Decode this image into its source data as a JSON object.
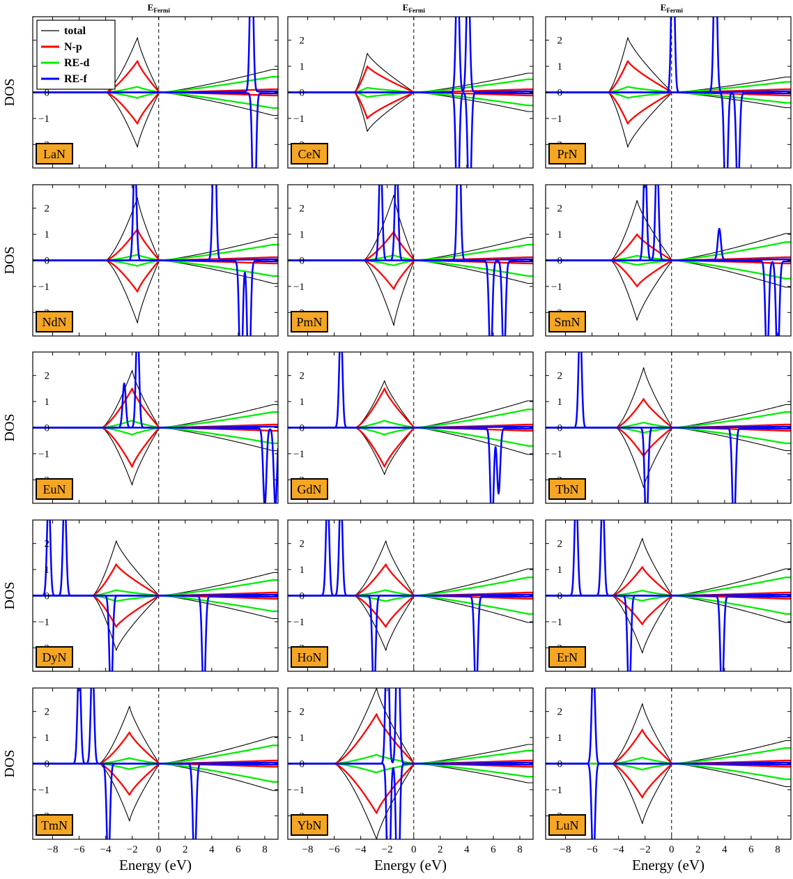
{
  "figure": {
    "fermi_label_main": "E",
    "fermi_label_sub": "Fermi",
    "y_axis_label": "DOS",
    "x_axis_label": "Energy (eV)",
    "x_ticks": [
      -8,
      -6,
      -4,
      -2,
      0,
      2,
      4,
      6,
      8
    ],
    "y_ticks": [
      -2,
      -1,
      0,
      1,
      2
    ],
    "x_range": [
      -9.5,
      9.0
    ],
    "y_range": [
      -2.9,
      2.9
    ],
    "fermi_energy": 0,
    "label_box_color": "#f5a623",
    "legend": [
      {
        "name": "total",
        "color": "#000000"
      },
      {
        "name": "N-p",
        "color": "#ff0000"
      },
      {
        "name": "RE-d",
        "color": "#00ee00"
      },
      {
        "name": "RE-f",
        "color": "#0000ff"
      }
    ]
  },
  "chart_data": [
    {
      "type": "line",
      "label": "LaN",
      "valence": {
        "start": -4.0,
        "peak": -1.6,
        "h_total": 2.1,
        "h_np": 1.2
      },
      "f_up": [
        [
          7.0,
          6.0
        ]
      ],
      "f_dn": [
        [
          7.2,
          6.0
        ]
      ],
      "d_level": 0.6
    },
    {
      "type": "line",
      "label": "CeN",
      "valence": {
        "start": -4.5,
        "peak": -3.5,
        "h_total": 1.5,
        "h_np": 1.0
      },
      "f_up": [
        [
          3.3,
          5.0
        ],
        [
          4.1,
          5.0
        ]
      ],
      "f_dn": [
        [
          3.3,
          5.0
        ],
        [
          4.2,
          5.0
        ]
      ],
      "d_level": 0.5
    },
    {
      "type": "line",
      "label": "PrN",
      "valence": {
        "start": -4.8,
        "peak": -3.3,
        "h_total": 2.1,
        "h_np": 1.2
      },
      "f_up": [
        [
          0.1,
          6.0
        ],
        [
          3.3,
          6.0
        ]
      ],
      "f_dn": [
        [
          4.1,
          5.0
        ],
        [
          5.0,
          4.0
        ]
      ],
      "d_level": 0.4
    },
    {
      "type": "line",
      "label": "NdN",
      "valence": {
        "start": -4.0,
        "peak": -1.6,
        "h_total": 2.4,
        "h_np": 1.2
      },
      "f_up": [
        [
          -1.8,
          4.0
        ],
        [
          4.2,
          6.0
        ]
      ],
      "f_dn": [
        [
          6.2,
          5.0
        ],
        [
          6.8,
          5.0
        ]
      ],
      "d_level": 0.6
    },
    {
      "type": "line",
      "label": "PmN",
      "valence": {
        "start": -3.8,
        "peak": -1.5,
        "h_total": 2.5,
        "h_np": 1.1
      },
      "f_up": [
        [
          -2.5,
          4.0
        ],
        [
          -1.3,
          4.0
        ],
        [
          3.4,
          6.0
        ]
      ],
      "f_dn": [
        [
          5.8,
          4.0
        ],
        [
          6.8,
          4.0
        ]
      ],
      "d_level": 0.6
    },
    {
      "type": "line",
      "label": "SmN",
      "valence": {
        "start": -4.6,
        "peak": -2.6,
        "h_total": 2.3,
        "h_np": 1.0
      },
      "f_up": [
        [
          -2.0,
          4.0
        ],
        [
          -1.1,
          4.0
        ],
        [
          3.6,
          1.2
        ]
      ],
      "f_dn": [
        [
          7.2,
          4.0
        ],
        [
          8.0,
          4.0
        ]
      ],
      "d_level": 0.7
    },
    {
      "type": "line",
      "label": "EuN",
      "valence": {
        "start": -4.3,
        "peak": -2.0,
        "h_total": 2.2,
        "h_np": 1.5
      },
      "f_up": [
        [
          -1.6,
          4.0
        ],
        [
          -2.6,
          1.7
        ]
      ],
      "f_dn": [
        [
          8.0,
          3.0
        ],
        [
          8.8,
          3.0
        ]
      ],
      "d_level": 0.6
    },
    {
      "type": "line",
      "label": "GdN",
      "valence": {
        "start": -4.4,
        "peak": -2.2,
        "h_total": 1.8,
        "h_np": 1.5
      },
      "f_up": [
        [
          -5.5,
          4.0
        ]
      ],
      "f_dn": [
        [
          5.9,
          4.0
        ],
        [
          6.4,
          2.5
        ]
      ],
      "d_level": 0.7
    },
    {
      "type": "line",
      "label": "TbN",
      "valence": {
        "start": -4.2,
        "peak": -2.1,
        "h_total": 2.3,
        "h_np": 1.1
      },
      "f_up": [
        [
          -6.9,
          4.0
        ]
      ],
      "f_dn": [
        [
          -1.9,
          4.0
        ],
        [
          4.7,
          4.0
        ]
      ],
      "d_level": 0.6
    },
    {
      "type": "line",
      "label": "DyN",
      "valence": {
        "start": -5.0,
        "peak": -3.2,
        "h_total": 2.1,
        "h_np": 1.2
      },
      "f_up": [
        [
          -8.3,
          4.0
        ],
        [
          -7.1,
          4.0
        ]
      ],
      "f_dn": [
        [
          -3.6,
          4.0
        ],
        [
          3.4,
          4.0
        ]
      ],
      "d_level": 0.6
    },
    {
      "type": "line",
      "label": "HoN",
      "valence": {
        "start": -4.5,
        "peak": -2.1,
        "h_total": 2.1,
        "h_np": 1.2
      },
      "f_up": [
        [
          -6.5,
          4.0
        ],
        [
          -5.5,
          4.0
        ]
      ],
      "f_dn": [
        [
          -3.0,
          4.0
        ],
        [
          4.7,
          4.0
        ]
      ],
      "d_level": 0.7
    },
    {
      "type": "line",
      "label": "ErN",
      "valence": {
        "start": -4.5,
        "peak": -2.2,
        "h_total": 2.2,
        "h_np": 1.1
      },
      "f_up": [
        [
          -7.2,
          4.0
        ],
        [
          -5.2,
          4.0
        ]
      ],
      "f_dn": [
        [
          -3.2,
          4.0
        ],
        [
          3.8,
          4.0
        ]
      ],
      "d_level": 0.7
    },
    {
      "type": "line",
      "label": "TmN",
      "valence": {
        "start": -4.5,
        "peak": -2.2,
        "h_total": 2.2,
        "h_np": 1.2
      },
      "f_up": [
        [
          -6.0,
          4.0
        ],
        [
          -5.0,
          4.0
        ]
      ],
      "f_dn": [
        [
          -3.8,
          4.0
        ],
        [
          2.7,
          4.0
        ]
      ],
      "d_level": 0.7
    },
    {
      "type": "line",
      "label": "YbN",
      "valence": {
        "start": -6.0,
        "peak": -2.8,
        "h_total": 2.9,
        "h_np": 1.9
      },
      "f_up": [
        [
          -2.0,
          6.0
        ],
        [
          -1.2,
          6.0
        ]
      ],
      "f_dn": [
        [
          -1.9,
          6.0
        ],
        [
          -1.2,
          6.0
        ]
      ],
      "d_level": 0.5
    },
    {
      "type": "line",
      "label": "LuN",
      "valence": {
        "start": -4.5,
        "peak": -2.2,
        "h_total": 2.3,
        "h_np": 1.3
      },
      "f_up": [
        [
          -5.9,
          4.0
        ]
      ],
      "f_dn": [
        [
          -5.9,
          4.0
        ]
      ],
      "d_level": 0.6
    }
  ]
}
